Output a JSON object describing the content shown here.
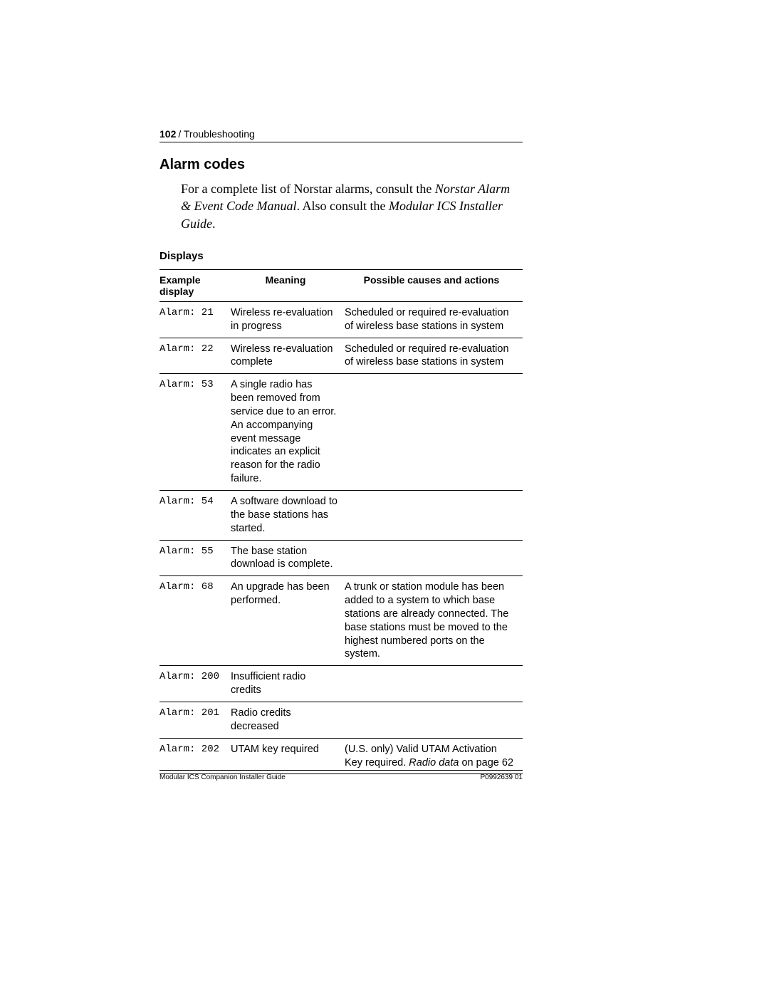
{
  "header": {
    "page_number": "102",
    "section": "/ Troubleshooting"
  },
  "section_title": "Alarm codes",
  "intro": {
    "text_1": "For a complete list of Norstar alarms, consult the ",
    "italic_1": "Norstar Alarm & Event Code Manual",
    "text_2": ". Also consult the ",
    "italic_2": "Modular ICS Installer Guide",
    "text_3": "."
  },
  "sub_title": "Displays",
  "table": {
    "columns": [
      "Example display",
      "Meaning",
      "Possible causes and actions"
    ],
    "rows": [
      {
        "code": "Alarm: 21",
        "meaning": "Wireless re-evaluation in progress",
        "actions": "Scheduled or required re-evaluation of wireless base stations in system"
      },
      {
        "code": "Alarm: 22",
        "meaning": "Wireless re-evaluation complete",
        "actions": "Scheduled or required re-evaluation of wireless base stations in system"
      },
      {
        "code": "Alarm: 53",
        "meaning": "A single radio has been removed from service due to an error. An accompanying event message indicates an explicit reason for the radio failure.",
        "actions": ""
      },
      {
        "code": "Alarm: 54",
        "meaning": "A software download to the base stations has started.",
        "actions": ""
      },
      {
        "code": "Alarm: 55",
        "meaning": "The base station download is complete.",
        "actions": ""
      },
      {
        "code": "Alarm: 68",
        "meaning": "An upgrade has been performed.",
        "actions": "A trunk or station module has been added to a system to which base stations are already connected. The base stations must be moved to the highest numbered ports on the system."
      },
      {
        "code": "Alarm: 200",
        "meaning": "Insufficient radio credits",
        "actions": ""
      },
      {
        "code": "Alarm: 201",
        "meaning": "Radio credits decreased",
        "actions": ""
      },
      {
        "code": "Alarm: 202",
        "meaning": "UTAM key required",
        "actions_prefix": "(U.S. only) Valid UTAM Activation Key required. ",
        "actions_italic": "Radio data",
        "actions_suffix": " on page 62"
      }
    ]
  },
  "footer": {
    "left": "Modular ICS Companion Installer Guide",
    "right": "P0992639 01"
  }
}
